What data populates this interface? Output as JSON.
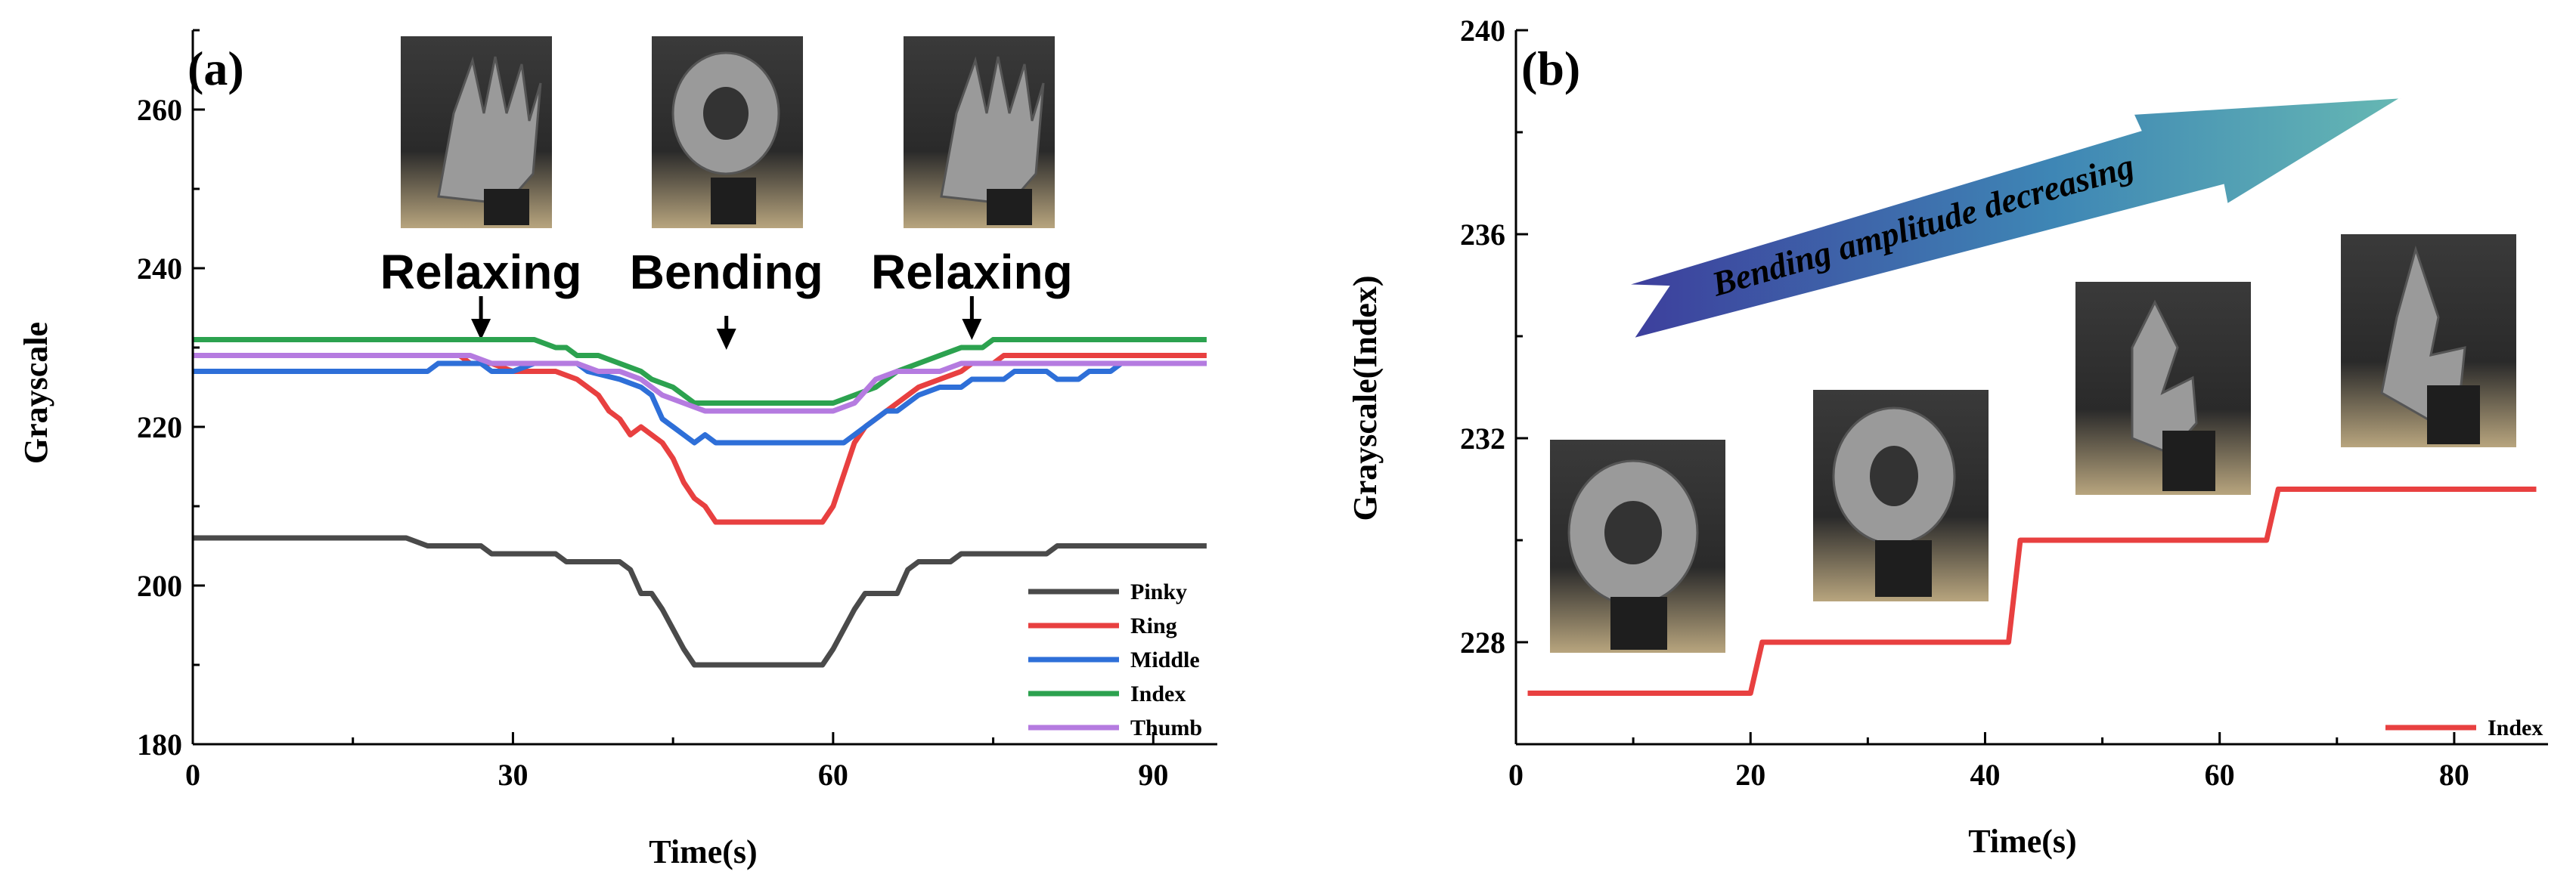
{
  "chart_data": [
    {
      "type": "line",
      "panel": "(a)",
      "xlabel": "Time(s)",
      "ylabel": "Grayscale",
      "xlim": [
        0,
        96
      ],
      "ylim": [
        180,
        270
      ],
      "xticks": [
        0,
        30,
        60,
        90
      ],
      "yticks": [
        180,
        200,
        220,
        240,
        260
      ],
      "annotations": [
        {
          "text": "Relaxing",
          "x": 27
        },
        {
          "text": "Bending",
          "x": 50
        },
        {
          "text": "Relaxing",
          "x": 73
        }
      ],
      "series": [
        {
          "name": "Pinky",
          "color": "#4a4a4a",
          "points": [
            [
              0,
              206
            ],
            [
              20,
              206
            ],
            [
              22,
              205
            ],
            [
              27,
              205
            ],
            [
              28,
              204
            ],
            [
              34,
              204
            ],
            [
              35,
              203
            ],
            [
              40,
              203
            ],
            [
              41,
              202
            ],
            [
              42,
              199
            ],
            [
              43,
              199
            ],
            [
              44,
              197
            ],
            [
              46,
              192
            ],
            [
              47,
              190
            ],
            [
              59,
              190
            ],
            [
              60,
              192
            ],
            [
              62,
              197
            ],
            [
              63,
              199
            ],
            [
              66,
              199
            ],
            [
              67,
              202
            ],
            [
              68,
              203
            ],
            [
              71,
              203
            ],
            [
              72,
              204
            ],
            [
              80,
              204
            ],
            [
              81,
              205
            ],
            [
              95,
              205
            ]
          ]
        },
        {
          "name": "Ring",
          "color": "#e84040",
          "points": [
            [
              0,
              229
            ],
            [
              23,
              229
            ],
            [
              25,
              229
            ],
            [
              26,
              228
            ],
            [
              28,
              228
            ],
            [
              30,
              227
            ],
            [
              34,
              227
            ],
            [
              36,
              226
            ],
            [
              38,
              224
            ],
            [
              39,
              222
            ],
            [
              40,
              221
            ],
            [
              41,
              219
            ],
            [
              42,
              220
            ],
            [
              44,
              218
            ],
            [
              45,
              216
            ],
            [
              46,
              213
            ],
            [
              47,
              211
            ],
            [
              48,
              210
            ],
            [
              49,
              208
            ],
            [
              59,
              208
            ],
            [
              60,
              210
            ],
            [
              61,
              214
            ],
            [
              62,
              218
            ],
            [
              63,
              220
            ],
            [
              64,
              221
            ],
            [
              66,
              223
            ],
            [
              68,
              225
            ],
            [
              70,
              226
            ],
            [
              72,
              227
            ],
            [
              73,
              228
            ],
            [
              75,
              228
            ],
            [
              76,
              229
            ],
            [
              95,
              229
            ]
          ]
        },
        {
          "name": "Middle",
          "color": "#2e6fd8",
          "points": [
            [
              0,
              227
            ],
            [
              22,
              227
            ],
            [
              23,
              228
            ],
            [
              27,
              228
            ],
            [
              28,
              227
            ],
            [
              30,
              227
            ],
            [
              32,
              228
            ],
            [
              36,
              228
            ],
            [
              37,
              227
            ],
            [
              40,
              226
            ],
            [
              42,
              225
            ],
            [
              43,
              224
            ],
            [
              44,
              221
            ],
            [
              45,
              220
            ],
            [
              46,
              219
            ],
            [
              47,
              218
            ],
            [
              48,
              219
            ],
            [
              49,
              218
            ],
            [
              61,
              218
            ],
            [
              62,
              219
            ],
            [
              63,
              220
            ],
            [
              64,
              221
            ],
            [
              65,
              222
            ],
            [
              66,
              222
            ],
            [
              67,
              223
            ],
            [
              68,
              224
            ],
            [
              70,
              225
            ],
            [
              72,
              225
            ],
            [
              73,
              226
            ],
            [
              76,
              226
            ],
            [
              77,
              227
            ],
            [
              80,
              227
            ],
            [
              81,
              226
            ],
            [
              83,
              226
            ],
            [
              84,
              227
            ],
            [
              86,
              227
            ],
            [
              87,
              228
            ],
            [
              95,
              228
            ]
          ]
        },
        {
          "name": "Index",
          "color": "#2ca24f",
          "points": [
            [
              0,
              231
            ],
            [
              32,
              231
            ],
            [
              34,
              230
            ],
            [
              35,
              230
            ],
            [
              36,
              229
            ],
            [
              38,
              229
            ],
            [
              40,
              228
            ],
            [
              42,
              227
            ],
            [
              43,
              226
            ],
            [
              45,
              225
            ],
            [
              46,
              224
            ],
            [
              47,
              223
            ],
            [
              48,
              223
            ],
            [
              60,
              223
            ],
            [
              62,
              224
            ],
            [
              64,
              225
            ],
            [
              65,
              226
            ],
            [
              66,
              227
            ],
            [
              68,
              228
            ],
            [
              70,
              229
            ],
            [
              72,
              230
            ],
            [
              74,
              230
            ],
            [
              75,
              231
            ],
            [
              95,
              231
            ]
          ]
        },
        {
          "name": "Thumb",
          "color": "#b57be0",
          "points": [
            [
              0,
              229
            ],
            [
              23,
              229
            ],
            [
              24,
              229
            ],
            [
              26,
              229
            ],
            [
              28,
              228
            ],
            [
              36,
              228
            ],
            [
              38,
              227
            ],
            [
              40,
              227
            ],
            [
              42,
              226
            ],
            [
              44,
              224
            ],
            [
              46,
              223
            ],
            [
              48,
              222
            ],
            [
              60,
              222
            ],
            [
              62,
              223
            ],
            [
              64,
              226
            ],
            [
              66,
              227
            ],
            [
              70,
              227
            ],
            [
              72,
              228
            ],
            [
              95,
              228
            ]
          ]
        }
      ]
    },
    {
      "type": "line",
      "panel": "(b)",
      "xlabel": "Time(s)",
      "ylabel": "Grayscale(Index)",
      "xlim": [
        0,
        88
      ],
      "ylim": [
        226,
        240
      ],
      "xticks": [
        0,
        20,
        40,
        60,
        80
      ],
      "yticks": [
        228,
        232,
        236,
        240
      ],
      "annotations": [
        {
          "text": "Bending amplitude decreasing"
        }
      ],
      "series": [
        {
          "name": "Index",
          "color": "#e84040",
          "points": [
            [
              1,
              227
            ],
            [
              20,
              227
            ],
            [
              21,
              228
            ],
            [
              42,
              228
            ],
            [
              43,
              230
            ],
            [
              64,
              230
            ],
            [
              65,
              231
            ],
            [
              87,
              231
            ]
          ]
        }
      ]
    }
  ]
}
